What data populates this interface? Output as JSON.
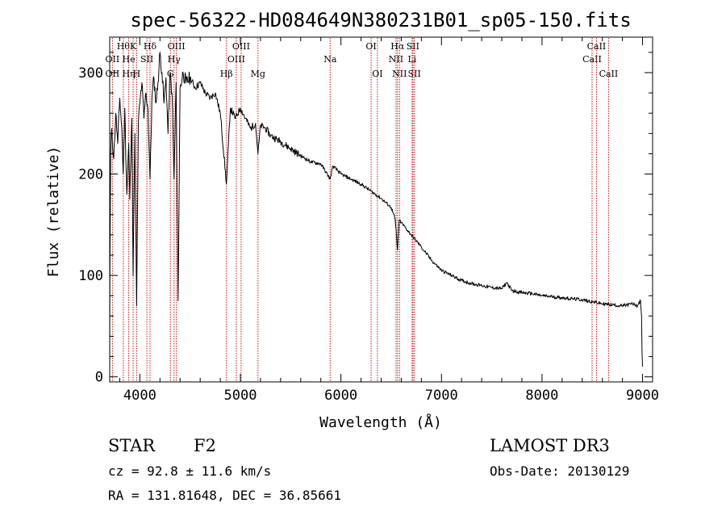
{
  "chart_data": {
    "type": "line",
    "title": "spec-56322-HD084649N380231B01_sp05-150.fits",
    "xlabel": "Wavelength (Å)",
    "ylabel": "Flux (relative)",
    "xlim": [
      3700,
      9100
    ],
    "ylim": [
      -5,
      335
    ],
    "xticks": [
      4000,
      5000,
      6000,
      7000,
      8000,
      9000
    ],
    "yticks": [
      0,
      100,
      200,
      300
    ],
    "series": [
      {
        "name": "spectrum",
        "x": [
          3700,
          3702,
          3710,
          3720,
          3740,
          3760,
          3780,
          3800,
          3820,
          3835,
          3850,
          3870,
          3889,
          3900,
          3920,
          3933,
          3950,
          3968,
          3985,
          4000,
          4020,
          4040,
          4060,
          4080,
          4101,
          4120,
          4140,
          4160,
          4180,
          4200,
          4220,
          4240,
          4260,
          4280,
          4300,
          4320,
          4340,
          4360,
          4380,
          4400,
          4430,
          4460,
          4500,
          4550,
          4600,
          4650,
          4700,
          4750,
          4800,
          4861,
          4900,
          4950,
          5000,
          5050,
          5100,
          5150,
          5175,
          5200,
          5250,
          5300,
          5400,
          5500,
          5600,
          5700,
          5800,
          5893,
          5920,
          6000,
          6100,
          6200,
          6300,
          6400,
          6500,
          6540,
          6563,
          6580,
          6600,
          6700,
          6800,
          6900,
          7000,
          7100,
          7200,
          7300,
          7400,
          7500,
          7600,
          7650,
          7700,
          7800,
          7900,
          8000,
          8100,
          8200,
          8300,
          8400,
          8500,
          8600,
          8700,
          8800,
          8900,
          8950,
          8980,
          8990,
          8995,
          9000
        ],
        "values": [
          0,
          95,
          220,
          245,
          215,
          260,
          230,
          275,
          245,
          200,
          265,
          180,
          230,
          175,
          255,
          100,
          240,
          70,
          250,
          270,
          290,
          255,
          280,
          265,
          195,
          275,
          295,
          270,
          290,
          320,
          300,
          270,
          295,
          240,
          300,
          280,
          195,
          290,
          75,
          285,
          300,
          290,
          295,
          285,
          290,
          280,
          275,
          280,
          260,
          190,
          265,
          255,
          265,
          255,
          245,
          250,
          220,
          248,
          245,
          238,
          232,
          225,
          218,
          212,
          210,
          195,
          208,
          200,
          195,
          190,
          183,
          176,
          167,
          155,
          125,
          155,
          152,
          140,
          128,
          115,
          105,
          100,
          95,
          92,
          90,
          88,
          87,
          93,
          85,
          83,
          82,
          80,
          79,
          78,
          77,
          76,
          74,
          72,
          71,
          70,
          72,
          70,
          75,
          60,
          25,
          10
        ]
      }
    ],
    "line_markers": [
      {
        "wavelength": 3727,
        "label": "OII",
        "row": 2
      },
      {
        "wavelength": 3727,
        "label": "OII",
        "row": 3
      },
      {
        "wavelength": 3835,
        "label": "Hθ",
        "row": 1
      },
      {
        "wavelength": 3889,
        "label": "He",
        "row": 2
      },
      {
        "wavelength": 3889,
        "label": "Hη",
        "row": 3
      },
      {
        "wavelength": 3933,
        "label": "K",
        "row": 1
      },
      {
        "wavelength": 3968,
        "label": "H",
        "row": 3
      },
      {
        "wavelength": 4070,
        "label": "SII",
        "row": 2
      },
      {
        "wavelength": 4101,
        "label": "Hδ",
        "row": 1
      },
      {
        "wavelength": 4304,
        "label": "G",
        "row": 3
      },
      {
        "wavelength": 4340,
        "label": "Hγ",
        "row": 2
      },
      {
        "wavelength": 4363,
        "label": "OIII",
        "row": 1
      },
      {
        "wavelength": 4861,
        "label": "Hβ",
        "row": 3
      },
      {
        "wavelength": 4959,
        "label": "OIII",
        "row": 2
      },
      {
        "wavelength": 5007,
        "label": "OIII",
        "row": 1
      },
      {
        "wavelength": 5175,
        "label": "Mg",
        "row": 3
      },
      {
        "wavelength": 5893,
        "label": "Na",
        "row": 2
      },
      {
        "wavelength": 6300,
        "label": "OI",
        "row": 1
      },
      {
        "wavelength": 6363,
        "label": "OI",
        "row": 3
      },
      {
        "wavelength": 6548,
        "label": "NII",
        "row": 2
      },
      {
        "wavelength": 6563,
        "label": "Hα",
        "row": 1
      },
      {
        "wavelength": 6583,
        "label": "NII",
        "row": 3
      },
      {
        "wavelength": 6708,
        "label": "Li",
        "row": 2
      },
      {
        "wavelength": 6716,
        "label": "SII",
        "row": 1
      },
      {
        "wavelength": 6731,
        "label": "SII",
        "row": 3
      },
      {
        "wavelength": 8498,
        "label": "CaII",
        "row": 2
      },
      {
        "wavelength": 8542,
        "label": "CaII",
        "row": 1
      },
      {
        "wavelength": 8662,
        "label": "CaII",
        "row": 3
      }
    ]
  },
  "info": {
    "object_class": "STAR",
    "subclass": "F2",
    "survey": "LAMOST DR3",
    "redshift": "cz = 92.8 ± 11.6 km/s",
    "obs_date": "Obs-Date: 20130129",
    "coords": "RA = 131.81648, DEC =  36.85661"
  },
  "colors": {
    "axis": "#000000",
    "spectrum": "#000000",
    "marker": "#c81414"
  }
}
